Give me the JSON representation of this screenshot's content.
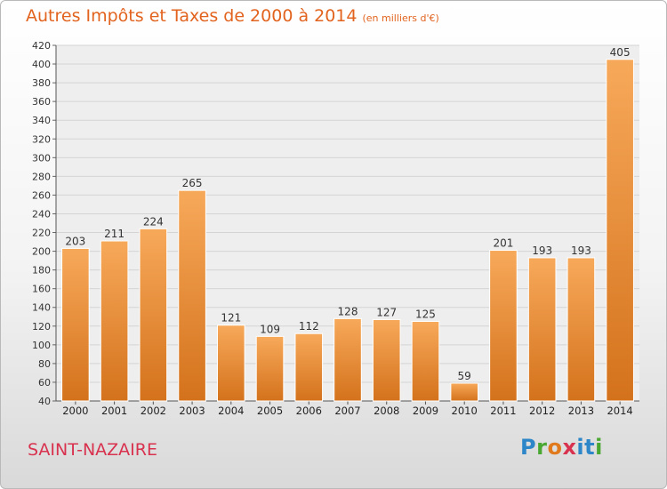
{
  "header": {
    "title": "Autres Impôts et Taxes de 2000 à 2014",
    "subtitle": "(en milliers d'€)"
  },
  "footer": {
    "city": "SAINT-NAZAIRE",
    "logo_text": "Proxiti"
  },
  "colors": {
    "title": "#e2631e",
    "city": "#d8324f",
    "bar_top": "#f7a95a",
    "bar_bottom": "#d4721c"
  },
  "chart_data": {
    "type": "bar",
    "categories": [
      "2000",
      "2001",
      "2002",
      "2003",
      "2004",
      "2005",
      "2006",
      "2007",
      "2008",
      "2009",
      "2010",
      "2011",
      "2012",
      "2013",
      "2014"
    ],
    "values": [
      203,
      211,
      224,
      265,
      121,
      109,
      112,
      128,
      127,
      125,
      59,
      201,
      193,
      193,
      405
    ],
    "title": "Autres Impôts et Taxes de 2000 à 2014",
    "subtitle": "(en milliers d'€)",
    "xlabel": "",
    "ylabel": "",
    "ylim": [
      40,
      420
    ],
    "ytick_step": 20,
    "grid": true,
    "data_labels": true
  }
}
